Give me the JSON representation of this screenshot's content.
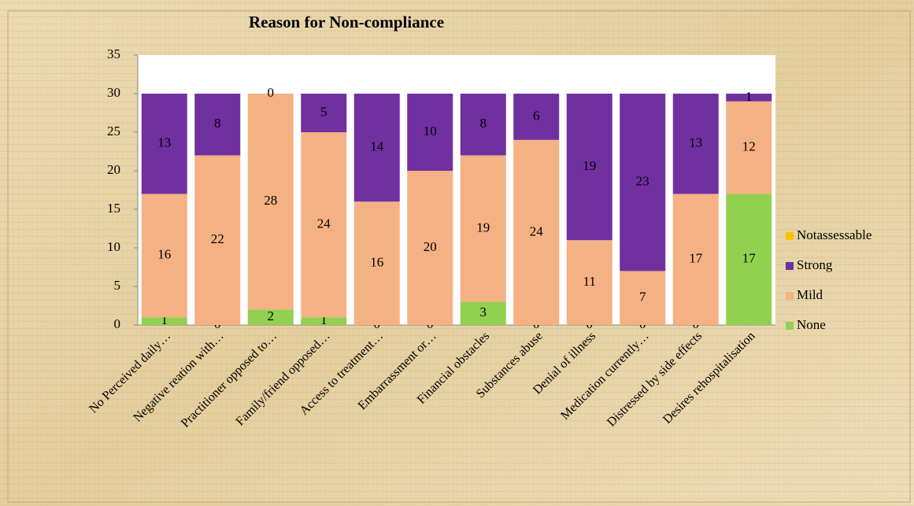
{
  "chart_data": {
    "type": "stacked_bar",
    "title": "Reason for Non-compliance",
    "categories": [
      "No Perceived daily…",
      "Negative reation with…",
      "Practitioner opposed to…",
      "Family/friend opposed…",
      "Access to treatment…",
      "Embarrassment or…",
      "Financial obstacles",
      "Substances abuse",
      "Denial of illness",
      "Medication currently…",
      "Distressed by side effects",
      "Desires rehospitalisation"
    ],
    "series": [
      {
        "name": "None",
        "color": "#92d050",
        "values": [
          1,
          0,
          2,
          1,
          0,
          0,
          3,
          0,
          0,
          0,
          0,
          17
        ]
      },
      {
        "name": "Mild",
        "color": "#f4b183",
        "values": [
          16,
          22,
          28,
          24,
          16,
          20,
          19,
          24,
          11,
          7,
          17,
          12
        ]
      },
      {
        "name": "Strong",
        "color": "#7030a0",
        "values": [
          13,
          8,
          0,
          5,
          14,
          10,
          8,
          6,
          19,
          23,
          13,
          1
        ]
      },
      {
        "name": "Notassessable",
        "color": "#ffc000",
        "values": [
          0,
          0,
          0,
          0,
          0,
          0,
          0,
          0,
          0,
          0,
          0,
          0
        ]
      }
    ],
    "ylim": [
      0,
      35
    ],
    "yticks": [
      0,
      5,
      10,
      15,
      20,
      25,
      30,
      35
    ],
    "legend": "right",
    "data_labels": [
      true,
      true,
      true,
      false
    ]
  }
}
